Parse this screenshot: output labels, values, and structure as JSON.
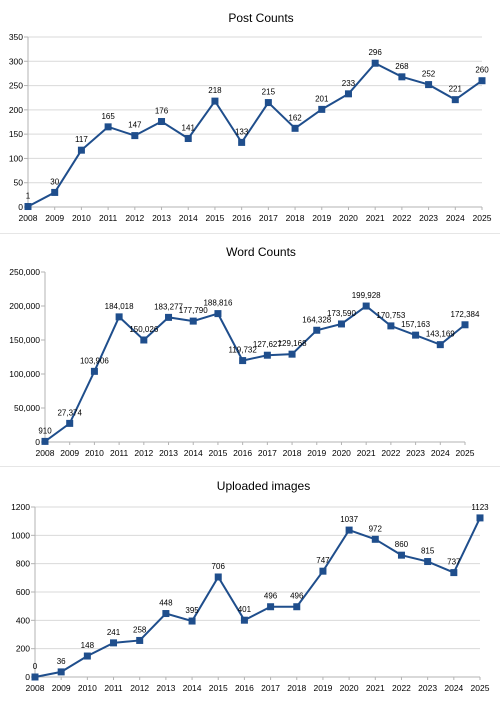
{
  "chart_data": [
    {
      "type": "line",
      "title": "Post Counts",
      "x": [
        "2008",
        "2009",
        "2010",
        "2011",
        "2012",
        "2013",
        "2014",
        "2015",
        "2016",
        "2017",
        "2018",
        "2019",
        "2020",
        "2021",
        "2022",
        "2023",
        "2024",
        "2025"
      ],
      "values": [
        1,
        30,
        117,
        165,
        147,
        176,
        141,
        218,
        133,
        215,
        162,
        201,
        233,
        296,
        268,
        252,
        221,
        260
      ],
      "labels": [
        "1",
        "30",
        "117",
        "165",
        "147",
        "176",
        "141",
        "218",
        "133",
        "215",
        "162",
        "201",
        "233",
        "296",
        "268",
        "252",
        "221",
        "260"
      ],
      "ylim": [
        0,
        350
      ],
      "yticks": [
        "0",
        "50",
        "100",
        "150",
        "200",
        "250",
        "300",
        "350"
      ],
      "grid": true,
      "color": "#1f4e8c"
    },
    {
      "type": "line",
      "title": "Word Counts",
      "x": [
        "2008",
        "2009",
        "2010",
        "2011",
        "2012",
        "2013",
        "2014",
        "2015",
        "2016",
        "2017",
        "2018",
        "2019",
        "2020",
        "2021",
        "2022",
        "2023",
        "2024",
        "2025"
      ],
      "values": [
        910,
        27374,
        103906,
        184018,
        150026,
        183277,
        177790,
        188816,
        119732,
        127627,
        129168,
        164328,
        173590,
        199928,
        170753,
        157163,
        143169,
        172384
      ],
      "labels": [
        "910",
        "27,374",
        "103,906",
        "184,018",
        "150,026",
        "183,277",
        "177,790",
        "188,816",
        "119,732",
        "127,627",
        "129,168",
        "164,328",
        "173,590",
        "199,928",
        "170,753",
        "157,163",
        "143,169",
        "172,384"
      ],
      "ylim": [
        0,
        250000
      ],
      "yticks": [
        "0",
        "50,000",
        "100,000",
        "150,000",
        "200,000",
        "250,000"
      ],
      "grid": false,
      "color": "#1f4e8c"
    },
    {
      "type": "line",
      "title": "Uploaded images",
      "x": [
        "2008",
        "2009",
        "2010",
        "2011",
        "2012",
        "2013",
        "2014",
        "2015",
        "2016",
        "2017",
        "2018",
        "2019",
        "2020",
        "2021",
        "2022",
        "2023",
        "2024",
        "2025"
      ],
      "values": [
        0,
        36,
        148,
        241,
        258,
        448,
        395,
        706,
        401,
        496,
        496,
        747,
        1037,
        972,
        860,
        815,
        737,
        1123
      ],
      "labels": [
        "0",
        "36",
        "148",
        "241",
        "258",
        "448",
        "395",
        "706",
        "401",
        "496",
        "496",
        "747",
        "1037",
        "972",
        "860",
        "815",
        "737",
        "1123"
      ],
      "ylim": [
        0,
        1200
      ],
      "yticks": [
        "0",
        "200",
        "400",
        "600",
        "800",
        "1000",
        "1200"
      ],
      "grid": true,
      "color": "#1f4e8c"
    }
  ]
}
